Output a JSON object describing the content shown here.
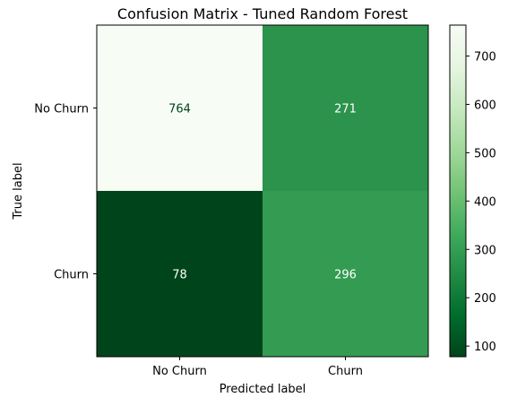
{
  "chart_data": {
    "type": "heatmap",
    "title": "Confusion Matrix - Tuned Random Forest",
    "xlabel": "Predicted label",
    "ylabel": "True label",
    "x_categories": [
      "No Churn",
      "Churn"
    ],
    "y_categories": [
      "No Churn",
      "Churn"
    ],
    "values": [
      [
        764,
        271
      ],
      [
        78,
        296
      ]
    ],
    "colormap": "Greens_r",
    "color_range": [
      78,
      764
    ],
    "colorbar_ticks": [
      100,
      200,
      300,
      400,
      500,
      600,
      700
    ],
    "colorbar_tick_labels": [
      "100",
      "200",
      "300",
      "400",
      "500",
      "600",
      "700"
    ],
    "grid": false
  }
}
